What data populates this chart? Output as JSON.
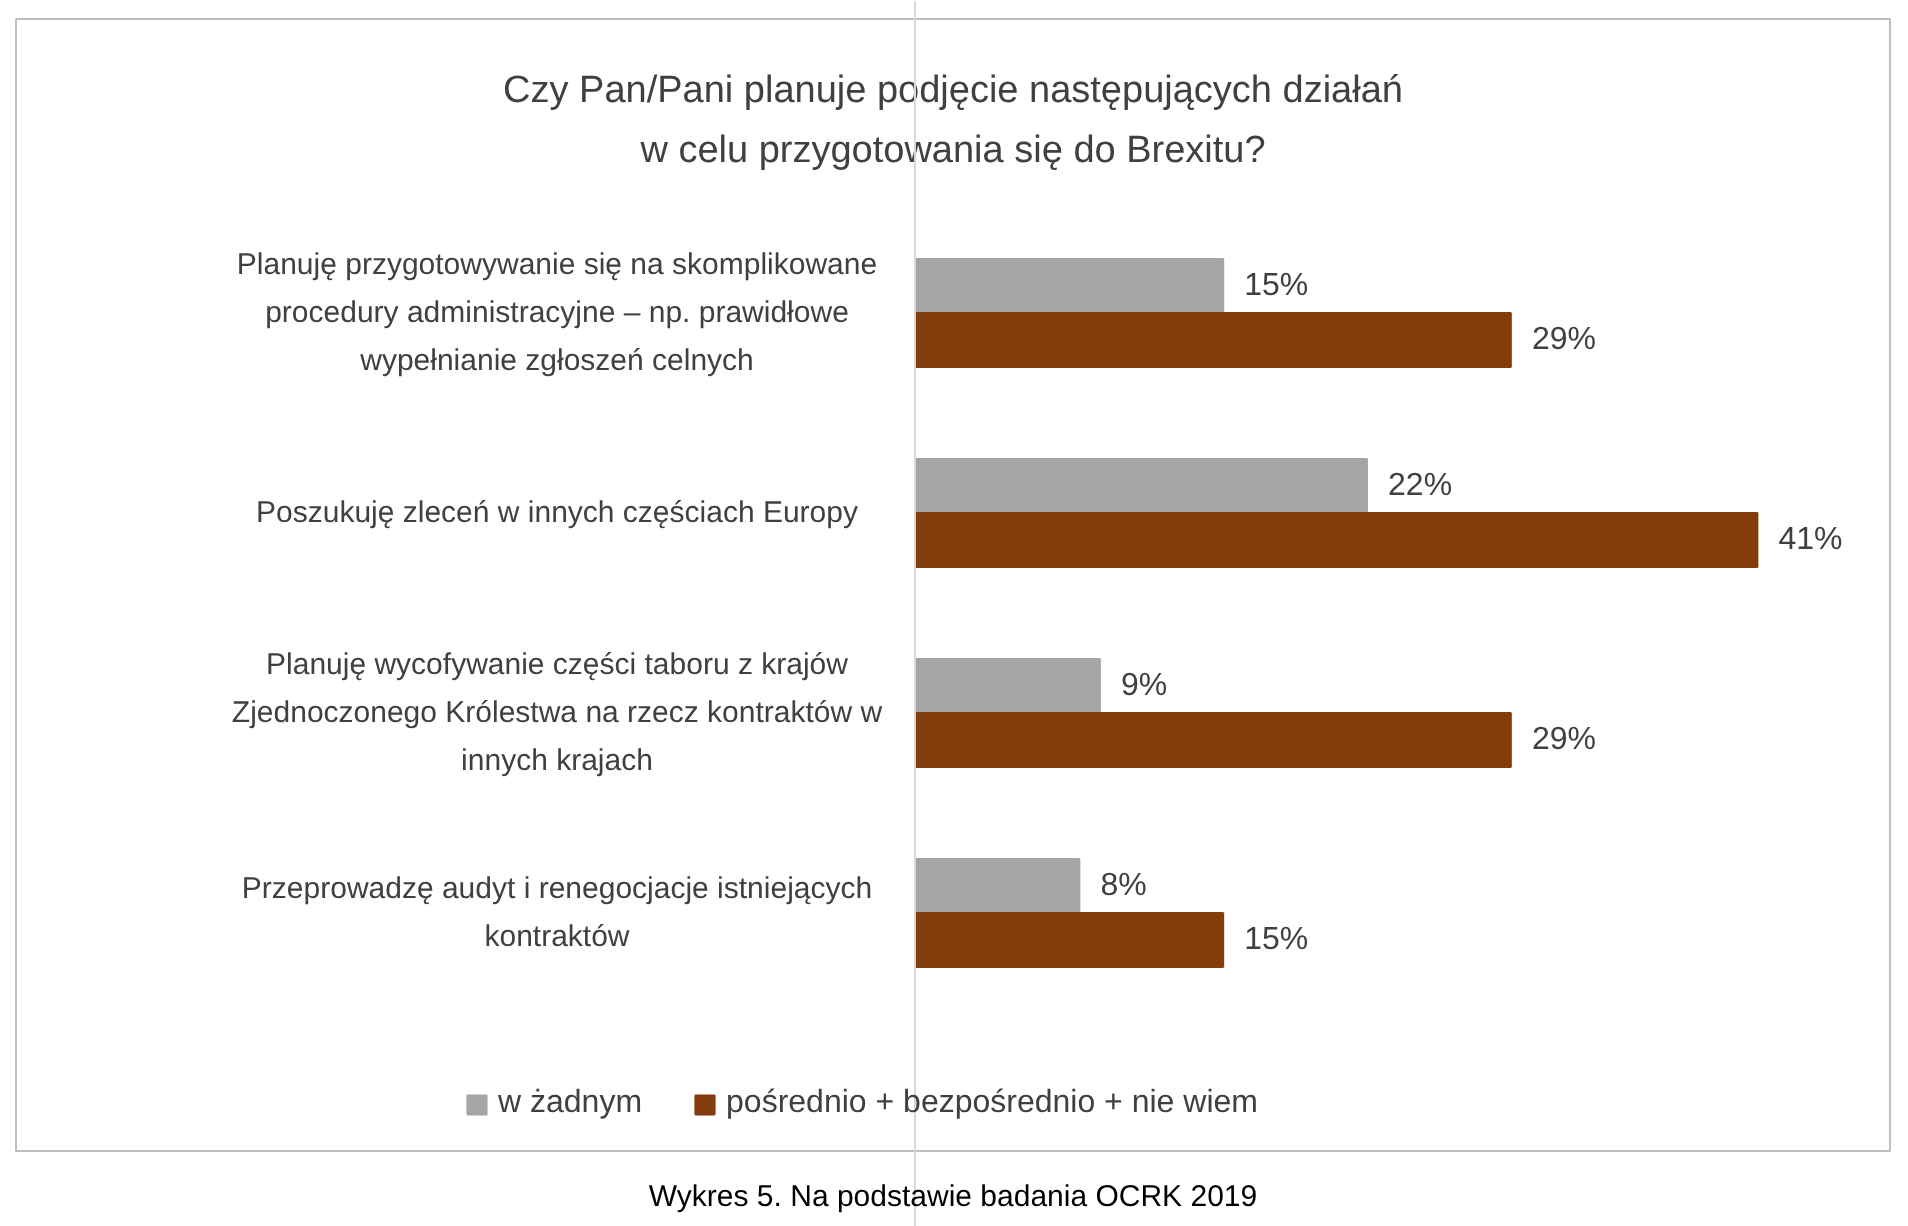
{
  "chart_data": {
    "type": "bar",
    "orientation": "horizontal",
    "title": "Czy Pan/Pani planuje podjęcie następujących działań\nw celu przygotowania się do Brexitu?",
    "categories": [
      "Planuję przygotowywanie się na skomplikowane procedury administracyjne – np. prawidłowe wypełnianie zgłoszeń celnych",
      "Poszukuję zleceń w innych częściach Europy",
      "Planuję wycofywanie części taboru z krajów Zjednoczonego Królestwa na rzecz kontraktów w innych krajach",
      "Przeprowadzę audyt i renegocjacje istniejących kontraktów"
    ],
    "series": [
      {
        "name": "w żadnym",
        "color": "#a5a5a5",
        "values": [
          15,
          22,
          9,
          8
        ],
        "value_labels": [
          "15%",
          "22%",
          "9%",
          "8%"
        ]
      },
      {
        "name": "pośrednio + bezpośrednio + nie wiem",
        "color": "#843c0c",
        "values": [
          29,
          41,
          29,
          15
        ],
        "value_labels": [
          "29%",
          "41%",
          "29%",
          "15%"
        ]
      }
    ],
    "legend": "bottom",
    "grid": false,
    "annotations": [
      "Wykres 5. Na podstawie badania OCRK 2019"
    ]
  }
}
